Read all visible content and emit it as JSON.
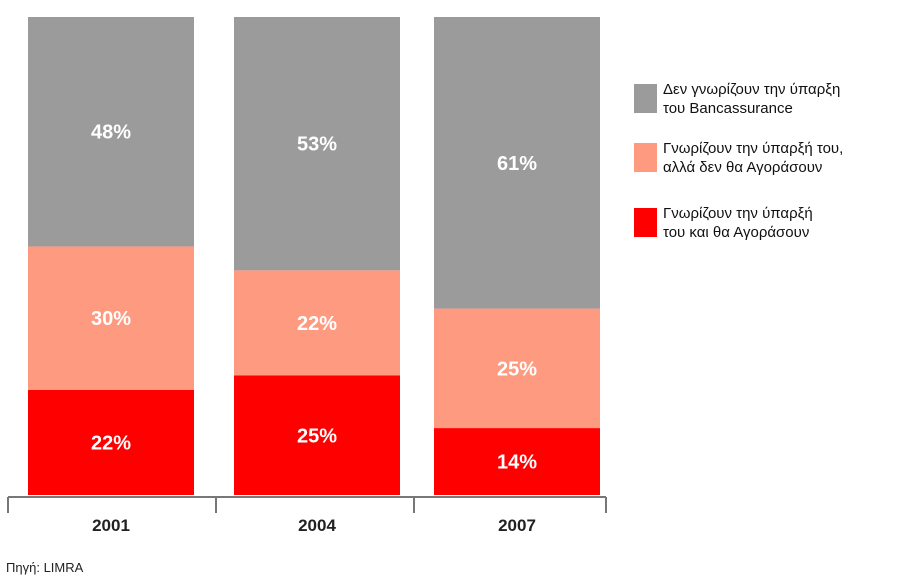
{
  "chart_data": {
    "type": "bar",
    "stacked": true,
    "percent": true,
    "categories": [
      "2001",
      "2004",
      "2007"
    ],
    "series": [
      {
        "name": "Γνωρίζουν την ύπαρξή του και θα Αγοράσουν",
        "legend_lines": [
          "Γνωρίζουν την ύπαρξή",
          "του και θα Αγοράσουν"
        ],
        "color": "#ff0000",
        "values": [
          22,
          25,
          14
        ],
        "labels": [
          "22%",
          "25%",
          "14%"
        ]
      },
      {
        "name": "Γνωρίζουν την ύπαρξή του, αλλά δεν θα Αγοράσουν",
        "legend_lines": [
          "Γνωρίζουν την ύπαρξή του,",
          "αλλά δεν θα Αγοράσουν"
        ],
        "color": "#fd9a80",
        "values": [
          30,
          22,
          25
        ],
        "labels": [
          "30%",
          "22%",
          "25%"
        ]
      },
      {
        "name": "Δεν γνωρίζουν την ύπαρξη του Bancassurance",
        "legend_lines": [
          "Δεν γνωρίζουν την ύπαρξη",
          "του Bancassurance"
        ],
        "color": "#9b9b9b",
        "values": [
          48,
          53,
          61
        ],
        "labels": [
          "48%",
          "53%",
          "61%"
        ]
      }
    ],
    "ylim": [
      0,
      100
    ],
    "grid": false,
    "legend_position": "right"
  },
  "source": "Πηγή: LIMRA"
}
